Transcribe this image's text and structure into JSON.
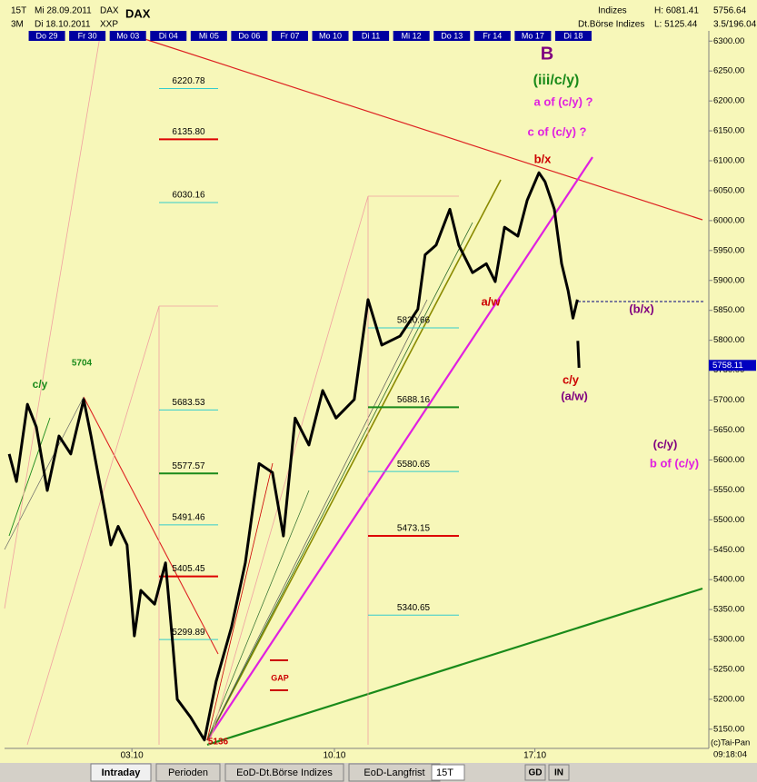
{
  "header": {
    "period": "15T",
    "date_from": "Mi 28.09.2011",
    "symbol_small": "DAX",
    "range": "3M",
    "date_to": "Di 18.10.2011",
    "exchange": "XXP",
    "symbol": "DAX",
    "group": "Indizes",
    "group_full": "Dt.Börse Indizes",
    "high": "H: 6081.41",
    "low": "L: 5125.44",
    "axis_top": "5756.64",
    "axis_info": "3.5/196.04"
  },
  "chart_data": {
    "type": "line",
    "color": "#000000",
    "day_labels": [
      "Do 29",
      "Fr 30",
      "Mo 03",
      "Di 04",
      "Mi 05",
      "Do 06",
      "Fr 07",
      "Mo 10",
      "Di 11",
      "Mi 12",
      "Do 13",
      "Fr 14",
      "Mo 17",
      "Di 18"
    ],
    "x": [
      0.07,
      0.25,
      0.52,
      0.74,
      1.01,
      1.3,
      1.59,
      1.91,
      2.09,
      2.42,
      2.58,
      2.76,
      2.98,
      3.16,
      3.32,
      3.66,
      3.93,
      4.11,
      4.22,
      4.55,
      4.89,
      5.18,
      5.56,
      5.9,
      6.24,
      6.57,
      6.84,
      7.13,
      7.47,
      7.81,
      8.14,
      8.59,
      8.93,
      9.27,
      9.72,
      10.16,
      10.34,
      10.61,
      10.95,
      11.17,
      11.51,
      11.85,
      12.07,
      12.3,
      12.63,
      12.86,
      13.15,
      13.3,
      13.53,
      13.71,
      13.87,
      13.99,
      14.1,
      14.105,
      14.11,
      14.14
    ],
    "values": [
      5610,
      5564,
      5693,
      5655,
      5549,
      5640,
      5610,
      5701,
      5640,
      5519,
      5458,
      5489,
      5458,
      5306,
      5382,
      5359,
      5428,
      5291,
      5200,
      5170,
      5132,
      5230,
      5321,
      5428,
      5594,
      5579,
      5473,
      5670,
      5625,
      5716,
      5670,
      5701,
      5868,
      5792,
      5807,
      5852,
      5943,
      5959,
      6019,
      5959,
      5913,
      5928,
      5898,
      5989,
      5974,
      6034,
      6080,
      6065,
      6019,
      5928,
      5883,
      5837,
      5868,
      null,
      5799,
      5754
    ],
    "xlim": [
      0,
      17.3
    ],
    "xticks": [
      {
        "value": 3.1,
        "label": "03.10"
      },
      {
        "value": 8.1,
        "label": "10.10"
      },
      {
        "value": 13.05,
        "label": "17.10"
      }
    ],
    "ylim": [
      5121,
      6311
    ],
    "yticks": [
      {
        "value": 6300,
        "label": "6300.00"
      },
      {
        "value": 6250,
        "label": "6250.00"
      },
      {
        "value": 6200,
        "label": "6200.00"
      },
      {
        "value": 6150,
        "label": "6150.00"
      },
      {
        "value": 6100,
        "label": "6100.00"
      },
      {
        "value": 6050,
        "label": "6050.00"
      },
      {
        "value": 6000,
        "label": "6000.00"
      },
      {
        "value": 5950,
        "label": "5950.00"
      },
      {
        "value": 5900,
        "label": "5900.00"
      },
      {
        "value": 5850,
        "label": "5850.00"
      },
      {
        "value": 5800,
        "label": "5800.00"
      },
      {
        "value": 5750,
        "label": "5750.00"
      },
      {
        "value": 5700,
        "label": "5700.00"
      },
      {
        "value": 5650,
        "label": "5650.00"
      },
      {
        "value": 5600,
        "label": "5600.00"
      },
      {
        "value": 5550,
        "label": "5550.00"
      },
      {
        "value": 5500,
        "label": "5500.00"
      },
      {
        "value": 5450,
        "label": "5450.00"
      },
      {
        "value": 5400,
        "label": "5400.00"
      },
      {
        "value": 5350,
        "label": "5350.00"
      },
      {
        "value": 5300,
        "label": "5300.00"
      },
      {
        "value": 5250,
        "label": "5250.00"
      },
      {
        "value": 5200,
        "label": "5200.00"
      },
      {
        "value": 5150,
        "label": "5150.00"
      }
    ],
    "last_price": 5758.11,
    "levels": [
      {
        "value": 6220.78,
        "label": "6220.78",
        "color": "#33cccc"
      },
      {
        "value": 6135.8,
        "label": "6135.80",
        "color": "#dd0000"
      },
      {
        "value": 6030.16,
        "label": "6030.16",
        "color": "#33cccc"
      },
      {
        "value": 5683.53,
        "label": "5683.53",
        "color": "#33cccc"
      },
      {
        "value": 5577.57,
        "label": "5577.57",
        "color": "#1a8a1a"
      },
      {
        "value": 5491.46,
        "label": "5491.46",
        "color": "#33cccc"
      },
      {
        "value": 5405.45,
        "label": "5405.45",
        "color": "#dd0000"
      },
      {
        "value": 5299.89,
        "label": "5299.89",
        "color": "#33cccc"
      },
      {
        "value": 5820.66,
        "label": "5820.66",
        "color": "#33cccc"
      },
      {
        "value": 5688.16,
        "label": "5688.16",
        "color": "#1a8a1a"
      },
      {
        "value": 5580.65,
        "label": "5580.65",
        "color": "#33cccc"
      },
      {
        "value": 5473.15,
        "label": "5473.15",
        "color": "#dd0000"
      },
      {
        "value": 5340.65,
        "label": "5340.65",
        "color": "#33cccc"
      }
    ],
    "annotations": [
      {
        "text": "B",
        "color": "#800080"
      },
      {
        "text": "(iii/c/y)",
        "color": "#1a8a1a"
      },
      {
        "text": "a of (c/y) ?",
        "color": "#e020e0"
      },
      {
        "text": "c of (c/y) ?",
        "color": "#e020e0"
      },
      {
        "text": "b/x",
        "color": "#cc0000"
      },
      {
        "text": "a/w",
        "color": "#cc0000"
      },
      {
        "text": "(b/x)",
        "color": "#800080"
      },
      {
        "text": "c/y",
        "color": "#cc0000"
      },
      {
        "text": "(a/w)",
        "color": "#800080"
      },
      {
        "text": "(c/y)",
        "color": "#800080"
      },
      {
        "text": "b of (c/y)",
        "color": "#e020e0"
      },
      {
        "text": "c/y",
        "color": "#1a8a1a"
      },
      {
        "text": "5704",
        "color": "#1a8a1a"
      },
      {
        "text": "GAP",
        "color": "#cc0000"
      },
      {
        "text": "5136",
        "color": "#cc0000"
      }
    ]
  },
  "toolbar": {
    "tabs": [
      "Intraday",
      "Perioden",
      "EoD-Dt.Börse Indizes",
      "EoD-Langfrist"
    ],
    "period": "15T",
    "buttons": [
      "GD",
      "IN"
    ]
  },
  "footer": {
    "copyright": "(c)Tai-Pan",
    "time": "09:18:04"
  }
}
